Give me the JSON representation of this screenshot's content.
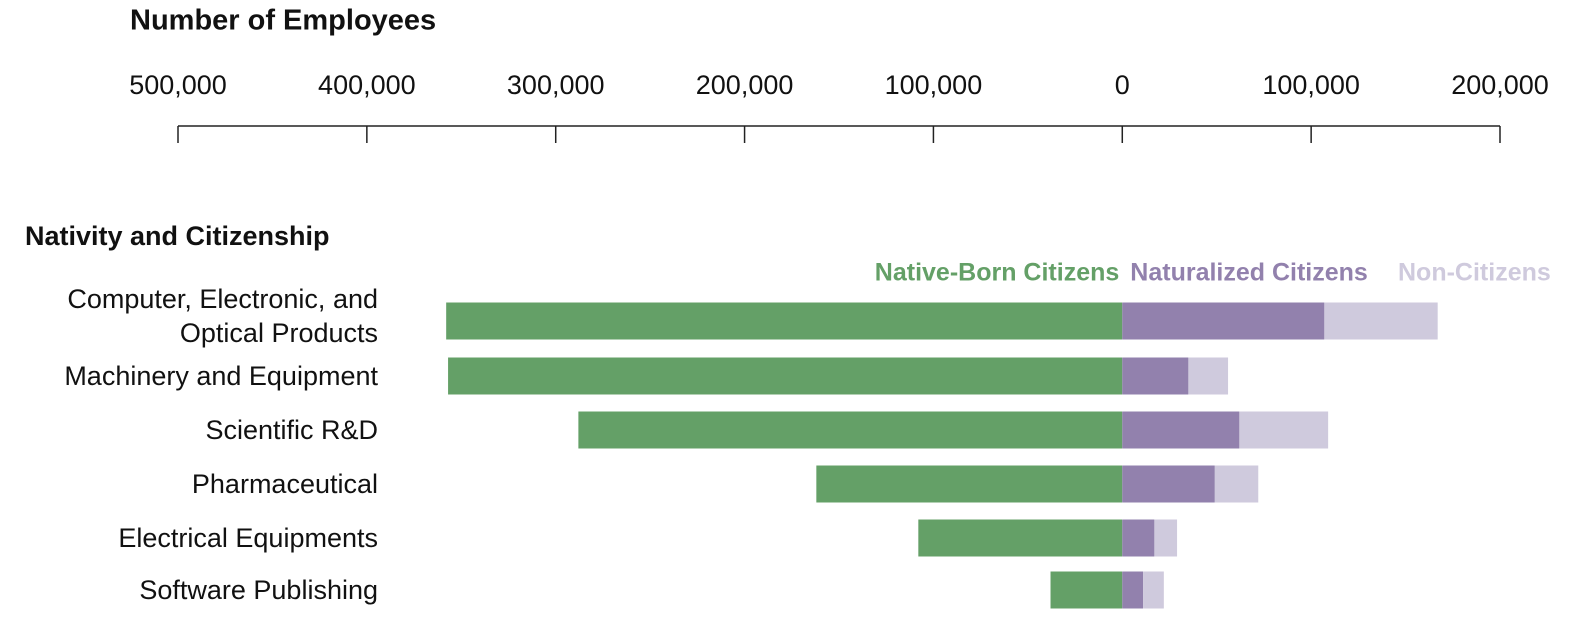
{
  "chart_data": {
    "type": "diverging-bar",
    "title": "Number of Employees",
    "subtitle": "Nativity and Citizenship",
    "categories": [
      "Computer, Electronic, and Optical Products",
      "Machinery and Equipment",
      "Scientific R&D",
      "Pharmaceutical",
      "Electrical Equipments",
      "Software Publishing"
    ],
    "series": [
      {
        "name": "Native-Born Citizens",
        "color": "#64a067",
        "values": [
          -358000,
          -357000,
          -288000,
          -162000,
          -108000,
          -38000
        ]
      },
      {
        "name": "Naturalized Citizens",
        "color": "#9281ad",
        "values": [
          107000,
          35000,
          62000,
          49000,
          17000,
          11000
        ]
      },
      {
        "name": "Non-Citizens",
        "color": "#cfcadd",
        "values": [
          60000,
          21000,
          47000,
          23000,
          12000,
          11000
        ]
      }
    ],
    "xlim": [
      -500000,
      200000
    ],
    "xticks": [
      {
        "value": -500000,
        "label": "500,000"
      },
      {
        "value": -400000,
        "label": "400,000"
      },
      {
        "value": -300000,
        "label": "300,000"
      },
      {
        "value": -200000,
        "label": "200,000"
      },
      {
        "value": -100000,
        "label": "100,000"
      },
      0,
      {
        "value": 100000,
        "label": "100,000"
      },
      {
        "value": 200000,
        "label": "200,000"
      }
    ]
  }
}
